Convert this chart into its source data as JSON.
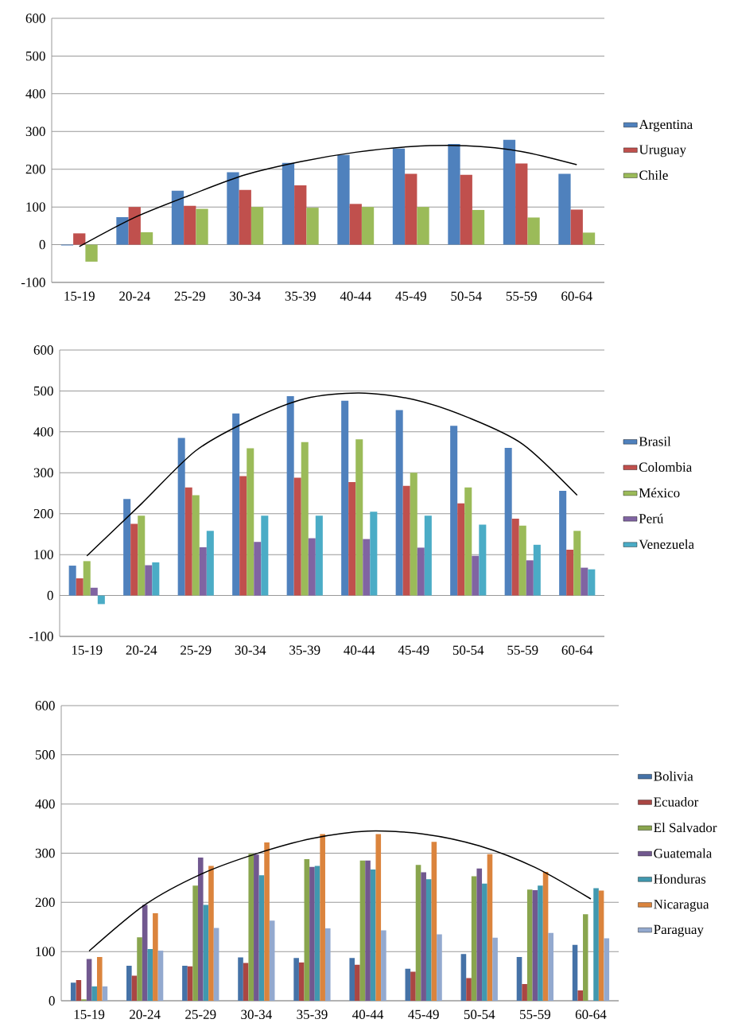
{
  "chart_data": [
    {
      "type": "bar",
      "categories": [
        "15-19",
        "20-24",
        "25-29",
        "30-34",
        "35-39",
        "40-44",
        "45-49",
        "50-54",
        "55-59",
        "60-64"
      ],
      "ylim": [
        -100,
        600
      ],
      "yticks": [
        -100,
        0,
        100,
        200,
        300,
        400,
        500,
        600
      ],
      "grid": "y",
      "legend": "right",
      "series": [
        {
          "name": "Argentina",
          "color": "#4f81bd",
          "values": [
            -2,
            73,
            143,
            192,
            217,
            238,
            255,
            267,
            278,
            188
          ]
        },
        {
          "name": "Uruguay",
          "color": "#c0504d",
          "values": [
            30,
            100,
            103,
            145,
            157,
            108,
            188,
            185,
            215,
            93
          ]
        },
        {
          "name": "Chile",
          "color": "#9bbb59",
          "values": [
            -45,
            33,
            95,
            100,
            98,
            100,
            100,
            92,
            72,
            32
          ]
        },
        {
          "type": "line",
          "color": "#000000",
          "values": [
            -5,
            72,
            131,
            185,
            220,
            245,
            260,
            262,
            247,
            212
          ]
        }
      ]
    },
    {
      "type": "bar",
      "categories": [
        "15-19",
        "20-24",
        "25-29",
        "30-34",
        "35-39",
        "40-44",
        "45-49",
        "50-54",
        "55-59",
        "60-64"
      ],
      "ylim": [
        -100,
        600
      ],
      "yticks": [
        -100,
        0,
        100,
        200,
        300,
        400,
        500,
        600
      ],
      "grid": "y",
      "legend": "right",
      "series": [
        {
          "name": "Brasil",
          "color": "#4f81bd",
          "values": [
            73,
            236,
            385,
            445,
            487,
            476,
            453,
            415,
            361,
            256
          ]
        },
        {
          "name": "Colombia",
          "color": "#c0504d",
          "values": [
            42,
            175,
            264,
            292,
            288,
            277,
            268,
            225,
            188,
            112
          ]
        },
        {
          "name": "México",
          "color": "#9bbb59",
          "values": [
            84,
            195,
            245,
            360,
            375,
            382,
            300,
            264,
            171,
            158
          ]
        },
        {
          "name": "Perú",
          "color": "#8064a2",
          "values": [
            19,
            74,
            118,
            131,
            140,
            138,
            117,
            97,
            86,
            68
          ]
        },
        {
          "name": "Venezuela",
          "color": "#4bacc6",
          "values": [
            -21,
            81,
            158,
            195,
            195,
            205,
            195,
            173,
            124,
            64
          ]
        },
        {
          "type": "line",
          "color": "#000000",
          "values": [
            97,
            224,
            354,
            429,
            481,
            495,
            479,
            435,
            370,
            245
          ]
        }
      ]
    },
    {
      "type": "bar",
      "categories": [
        "15-19",
        "20-24",
        "25-29",
        "30-34",
        "35-39",
        "40-44",
        "45-49",
        "50-54",
        "55-59",
        "60-64"
      ],
      "ylim": [
        0,
        600
      ],
      "yticks": [
        0,
        100,
        200,
        300,
        400,
        500,
        600
      ],
      "grid": "y",
      "legend": "right",
      "series": [
        {
          "name": "Bolivia",
          "color": "#4572a7",
          "values": [
            37,
            71,
            71,
            88,
            87,
            87,
            65,
            95,
            89,
            114
          ]
        },
        {
          "name": "Ecuador",
          "color": "#aa4643",
          "values": [
            42,
            51,
            70,
            77,
            78,
            73,
            59,
            46,
            34,
            21
          ]
        },
        {
          "name": "El Salvador",
          "color": "#89a54e",
          "values": [
            3,
            129,
            234,
            299,
            288,
            285,
            276,
            253,
            226,
            176
          ]
        },
        {
          "name": "Guatemala",
          "color": "#71588f",
          "values": [
            85,
            195,
            291,
            297,
            272,
            285,
            261,
            269,
            225,
            null
          ]
        },
        {
          "name": "Honduras",
          "color": "#4198af",
          "values": [
            29,
            105,
            195,
            255,
            274,
            267,
            247,
            238,
            234,
            229
          ]
        },
        {
          "name": "Nicaragua",
          "color": "#db843d",
          "values": [
            89,
            178,
            274,
            322,
            339,
            339,
            323,
            298,
            262,
            224
          ]
        },
        {
          "name": "Paraguay",
          "color": "#93a9cf",
          "values": [
            29,
            102,
            148,
            163,
            147,
            143,
            135,
            128,
            138,
            127
          ]
        },
        {
          "type": "line",
          "color": "#000000",
          "values": [
            101,
            195,
            257,
            299,
            330,
            345,
            339,
            315,
            271,
            207
          ]
        }
      ]
    }
  ]
}
